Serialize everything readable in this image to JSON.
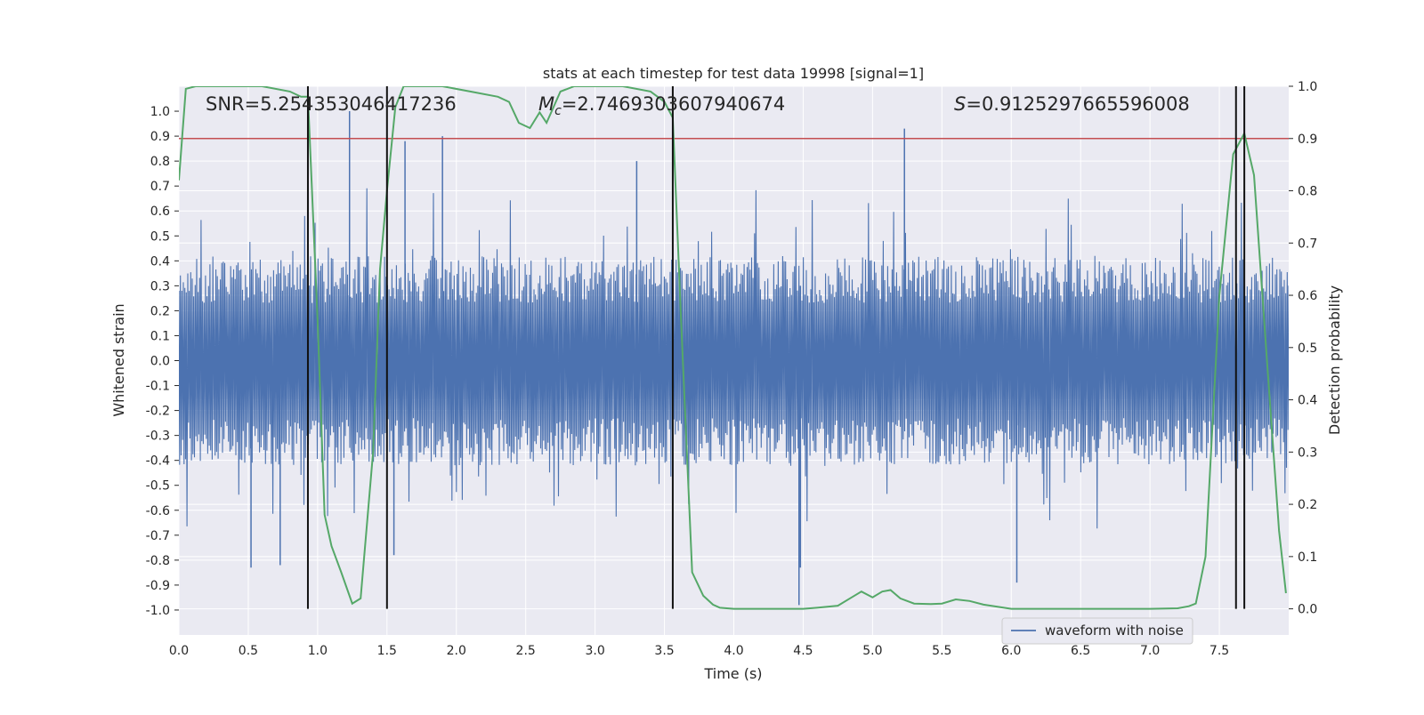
{
  "chart_data": {
    "type": "line",
    "title": "stats at each timestep for test data 19998 [signal=1]",
    "xlabel": "Time (s)",
    "ylabel_left": "Whitened strain",
    "ylabel_right": "Detection probability",
    "xlim": [
      0.0,
      8.0
    ],
    "ylim_left": [
      -1.1,
      1.1
    ],
    "ylim_right": [
      -0.05,
      1.0
    ],
    "x_ticks": [
      "0.0",
      "0.5",
      "1.0",
      "1.5",
      "2.0",
      "2.5",
      "3.0",
      "3.5",
      "4.0",
      "4.5",
      "5.0",
      "5.5",
      "6.0",
      "6.5",
      "7.0",
      "7.5"
    ],
    "y_ticks_left": [
      "1.0",
      "0.9",
      "0.8",
      "0.7",
      "0.6",
      "0.5",
      "0.4",
      "0.3",
      "0.2",
      "0.1",
      "0.0",
      "-0.1",
      "-0.2",
      "-0.3",
      "-0.4",
      "-0.5",
      "-0.6",
      "-0.7",
      "-0.8",
      "-0.9",
      "-1.0"
    ],
    "y_ticks_right": [
      "1.0",
      "0.9",
      "0.8",
      "0.7",
      "0.6",
      "0.5",
      "0.4",
      "0.3",
      "0.2",
      "0.1",
      "0.0"
    ],
    "grid": true,
    "legend_position": "lower-right",
    "annotations": {
      "snr_prefix": "SNR=",
      "snr": "5.254353046417236",
      "mc_symbol": "M",
      "mc_sub": "c",
      "mc_value": "=2.7469303607940674",
      "s_symbol": "S",
      "s_value": "=0.9125297665596008"
    },
    "threshold": {
      "name": "detection threshold",
      "value": 0.9,
      "color": "#c44e52"
    },
    "vertical_markers": [
      0.93,
      1.5,
      3.56,
      7.62,
      7.68
    ],
    "series": [
      {
        "name": "waveform with noise",
        "axis": "left",
        "color": "#4c72b0",
        "note": "whitened noisy strain, dense oscillation between about -0.5 and 0.5 with spikes",
        "envelope": {
          "typical": 0.42,
          "spikes_up": [
            [
              0.93,
              0.72
            ],
            [
              1.23,
              1.0
            ],
            [
              1.63,
              0.88
            ],
            [
              1.9,
              0.9
            ],
            [
              3.3,
              0.8
            ],
            [
              5.23,
              0.93
            ],
            [
              4.48,
              0.3
            ]
          ],
          "spikes_down": [
            [
              0.52,
              -0.83
            ],
            [
              0.73,
              -0.82
            ],
            [
              1.55,
              -0.78
            ],
            [
              4.47,
              -0.98
            ],
            [
              4.48,
              -0.83
            ],
            [
              6.04,
              -0.89
            ]
          ]
        }
      },
      {
        "name": "detection probability",
        "axis": "right",
        "color": "#55a868",
        "x": [
          0.0,
          0.05,
          0.12,
          0.3,
          0.6,
          0.8,
          0.88,
          0.93,
          1.0,
          1.05,
          1.1,
          1.17,
          1.25,
          1.31,
          1.4,
          1.45,
          1.5,
          1.56,
          1.62,
          1.7,
          1.9,
          2.1,
          2.3,
          2.38,
          2.45,
          2.53,
          2.6,
          2.65,
          2.7,
          2.75,
          2.85,
          3.0,
          3.2,
          3.4,
          3.5,
          3.56,
          3.62,
          3.7,
          3.78,
          3.85,
          3.9,
          4.0,
          4.2,
          4.5,
          4.6,
          4.75,
          4.85,
          4.92,
          5.0,
          5.07,
          5.13,
          5.2,
          5.3,
          5.42,
          5.5,
          5.6,
          5.7,
          5.8,
          6.0,
          6.2,
          6.5,
          7.0,
          7.2,
          7.28,
          7.33,
          7.4,
          7.5,
          7.6,
          7.68,
          7.75,
          7.85,
          7.93,
          7.98
        ],
        "values": [
          0.82,
          0.995,
          1.0,
          1.0,
          1.0,
          0.99,
          0.98,
          0.98,
          0.55,
          0.18,
          0.12,
          0.07,
          0.01,
          0.02,
          0.3,
          0.65,
          0.8,
          0.96,
          1.0,
          1.0,
          1.0,
          0.99,
          0.98,
          0.97,
          0.93,
          0.92,
          0.95,
          0.93,
          0.96,
          0.99,
          1.0,
          1.0,
          1.0,
          0.99,
          0.97,
          0.94,
          0.55,
          0.07,
          0.025,
          0.008,
          0.002,
          0.0,
          0.0,
          0.0,
          0.002,
          0.006,
          0.022,
          0.033,
          0.022,
          0.033,
          0.036,
          0.02,
          0.01,
          0.009,
          0.01,
          0.018,
          0.015,
          0.008,
          0.0,
          0.0,
          0.0,
          0.0,
          0.001,
          0.005,
          0.01,
          0.1,
          0.6,
          0.87,
          0.91,
          0.83,
          0.45,
          0.15,
          0.03
        ]
      }
    ]
  }
}
